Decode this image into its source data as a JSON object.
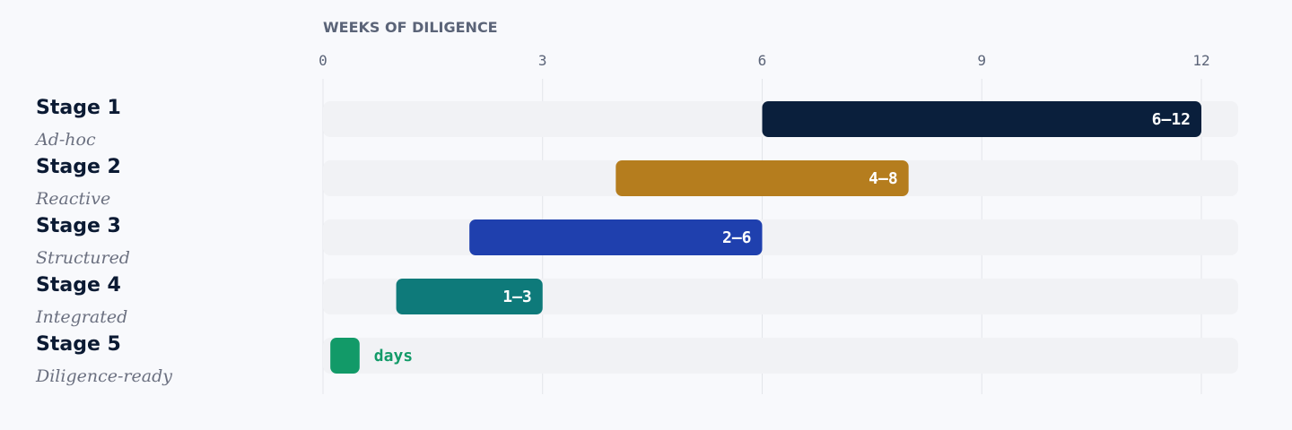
{
  "chart_data": {
    "type": "bar",
    "orientation": "horizontal-range",
    "axis_title": "WEEKS OF DILIGENCE",
    "xlim": [
      0,
      12.5
    ],
    "xticks": [
      0,
      3,
      6,
      9,
      12
    ],
    "grid": true,
    "stages": [
      {
        "name": "Stage 1",
        "subtitle": "Ad-hoc",
        "start": 6,
        "end": 12,
        "label": "6–12",
        "color": "#0a1f3c"
      },
      {
        "name": "Stage 2",
        "subtitle": "Reactive",
        "start": 4,
        "end": 8,
        "label": "4–8",
        "color": "#b57d1e"
      },
      {
        "name": "Stage 3",
        "subtitle": "Structured",
        "start": 2,
        "end": 6,
        "label": "2–6",
        "color": "#1f40ae"
      },
      {
        "name": "Stage 4",
        "subtitle": "Integrated",
        "start": 1,
        "end": 3,
        "label": "1–3",
        "color": "#0e7a7a"
      },
      {
        "name": "Stage 5",
        "subtitle": "Diligence-ready",
        "start": 0.1,
        "end": 0.5,
        "label": "days",
        "color": "#129a68",
        "label_outside": true
      }
    ]
  }
}
